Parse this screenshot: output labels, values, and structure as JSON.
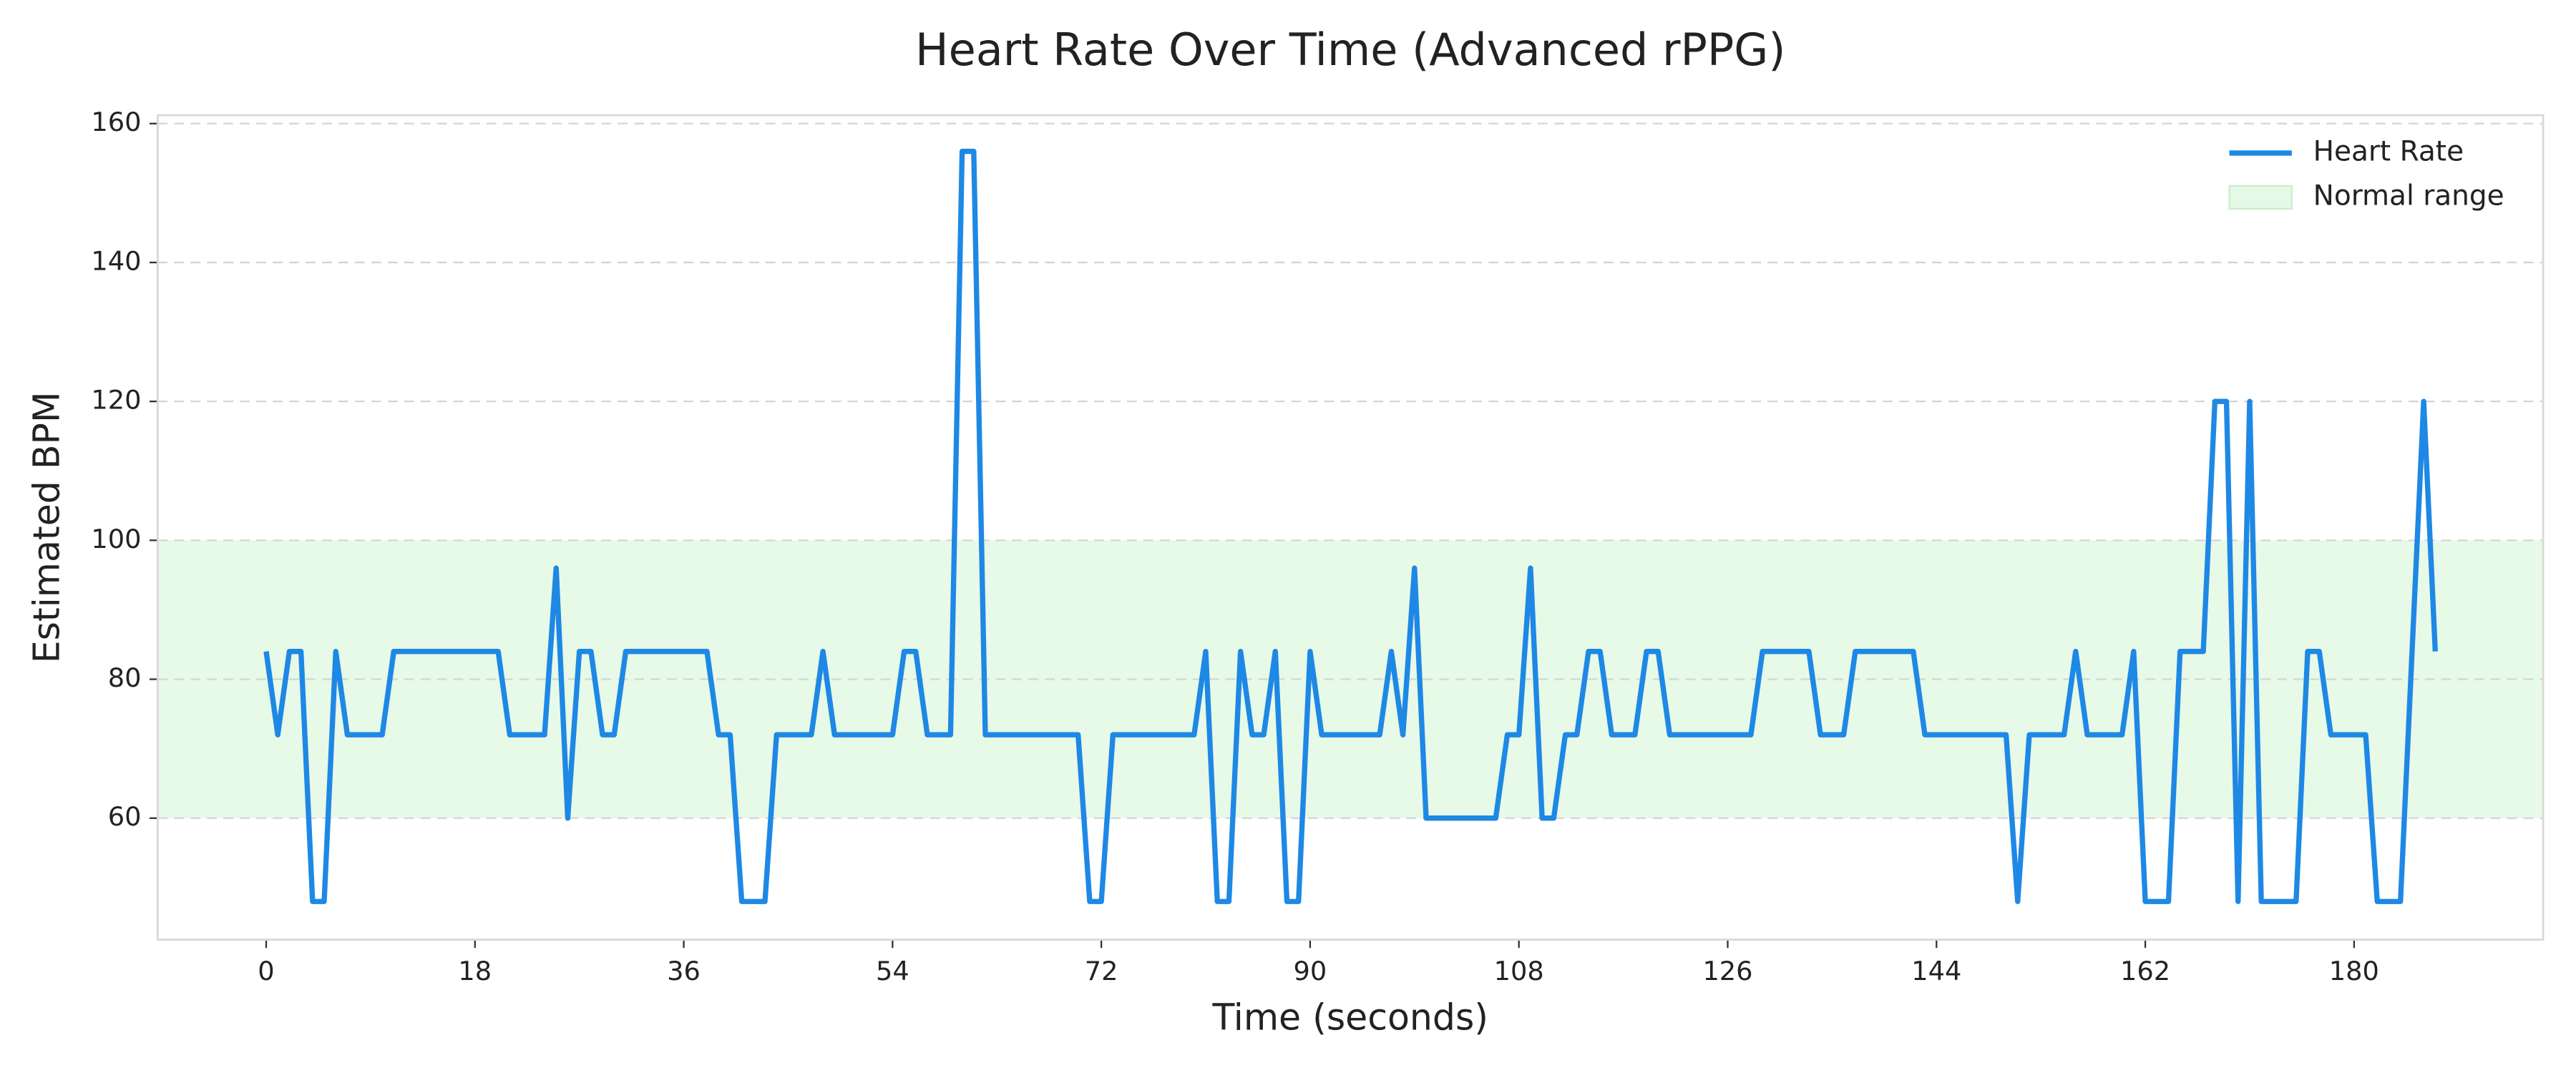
{
  "chart_data": {
    "type": "line",
    "title": "Heart Rate Over Time (Advanced rPPG)",
    "x_label": "Time (seconds)",
    "y_label": "Estimated BPM",
    "x": [
      0,
      1,
      2,
      3,
      4,
      5,
      6,
      7,
      8,
      9,
      10,
      11,
      12,
      13,
      14,
      15,
      16,
      17,
      18,
      19,
      20,
      21,
      22,
      23,
      24,
      25,
      26,
      27,
      28,
      29,
      30,
      31,
      32,
      33,
      34,
      35,
      36,
      37,
      38,
      39,
      40,
      41,
      42,
      43,
      44,
      45,
      46,
      47,
      48,
      49,
      50,
      51,
      52,
      53,
      54,
      55,
      56,
      57,
      58,
      59,
      60,
      61,
      62,
      63,
      64,
      65,
      66,
      67,
      68,
      69,
      70,
      71,
      72,
      73,
      74,
      75,
      76,
      77,
      78,
      79,
      80,
      81,
      82,
      83,
      84,
      85,
      86,
      87,
      88,
      89,
      90,
      91,
      92,
      93,
      94,
      95,
      96,
      97,
      98,
      99,
      100,
      101,
      102,
      103,
      104,
      105,
      106,
      107,
      108,
      109,
      110,
      111,
      112,
      113,
      114,
      115,
      116,
      117,
      118,
      119,
      120,
      121,
      122,
      123,
      124,
      125,
      126,
      127,
      128,
      129,
      130,
      131,
      132,
      133,
      134,
      135,
      136,
      137,
      138,
      139,
      140,
      141,
      142,
      143,
      144,
      145,
      146,
      147,
      148,
      149,
      150,
      151,
      152,
      153,
      154,
      155,
      156,
      157,
      158,
      159,
      160,
      161,
      162,
      163,
      164,
      165,
      166,
      167,
      168,
      169,
      170,
      171,
      172,
      173,
      174,
      175,
      176,
      177,
      178,
      179,
      180,
      181,
      182,
      183,
      184,
      185,
      186,
      187
    ],
    "series": [
      {
        "name": "Heart Rate",
        "color": "#1e88e5",
        "values": [
          84,
          72,
          84,
          84,
          48,
          48,
          84,
          72,
          72,
          72,
          72,
          84,
          84,
          84,
          84,
          84,
          84,
          84,
          84,
          84,
          84,
          72,
          72,
          72,
          72,
          96,
          60,
          84,
          84,
          72,
          72,
          84,
          84,
          84,
          84,
          84,
          84,
          84,
          84,
          72,
          72,
          48,
          48,
          48,
          72,
          72,
          72,
          72,
          84,
          72,
          72,
          72,
          72,
          72,
          72,
          84,
          84,
          72,
          72,
          72,
          156,
          156,
          72,
          72,
          72,
          72,
          72,
          72,
          72,
          72,
          72,
          48,
          48,
          72,
          72,
          72,
          72,
          72,
          72,
          72,
          72,
          84,
          48,
          48,
          84,
          72,
          72,
          84,
          48,
          48,
          84,
          72,
          72,
          72,
          72,
          72,
          72,
          84,
          72,
          96,
          60,
          60,
          60,
          60,
          60,
          60,
          60,
          72,
          72,
          96,
          60,
          60,
          72,
          72,
          84,
          84,
          72,
          72,
          72,
          84,
          84,
          72,
          72,
          72,
          72,
          72,
          72,
          72,
          72,
          84,
          84,
          84,
          84,
          84,
          72,
          72,
          72,
          84,
          84,
          84,
          84,
          84,
          84,
          72,
          72,
          72,
          72,
          72,
          72,
          72,
          72,
          48,
          72,
          72,
          72,
          72,
          84,
          72,
          72,
          72,
          72,
          84,
          48,
          48,
          48,
          84,
          84,
          84,
          120,
          120,
          48,
          120,
          48,
          48,
          48,
          48,
          84,
          84,
          72,
          72,
          72,
          72,
          48,
          48,
          48,
          84,
          120,
          84
        ]
      }
    ],
    "normal_range": {
      "name": "Normal range",
      "color": "#e6f9e6",
      "values": [
        60,
        100
      ]
    },
    "xlim": [
      -9.35,
      196.3
    ],
    "ylim": [
      42.5,
      161.2
    ],
    "xticks": [
      0,
      18,
      36,
      54,
      72,
      90,
      108,
      126,
      144,
      162,
      180
    ],
    "yticks": [
      60,
      80,
      100,
      120,
      140,
      160
    ],
    "grid": true,
    "legend": "upper right"
  }
}
